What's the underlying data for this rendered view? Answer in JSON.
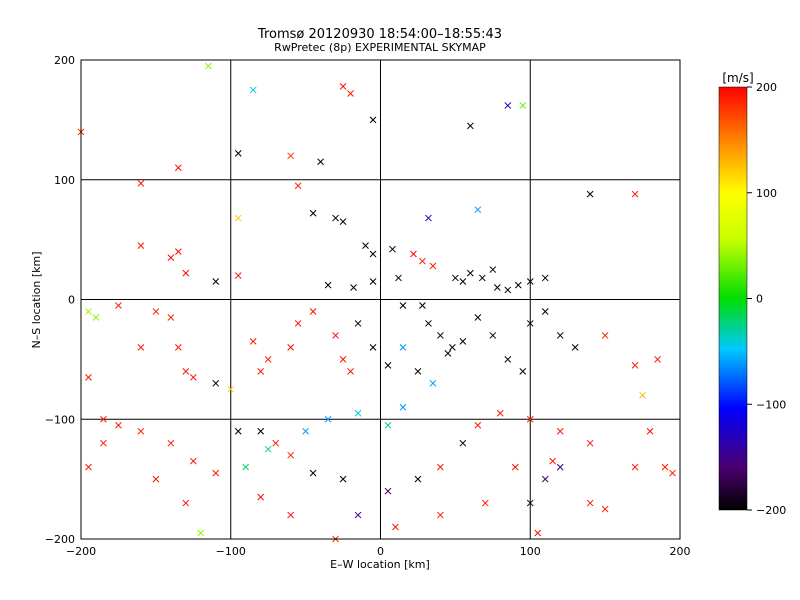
{
  "chart_data": {
    "type": "scatter",
    "title": "Tromsø 20120930 18:54:00–18:55:43",
    "subtitle": "RwPretec (8p) EXPERIMENTAL SKYMAP",
    "xlabel": "E–W location [km]",
    "ylabel": "N–S location [km]",
    "xlim": [
      -200,
      200
    ],
    "ylim": [
      -200,
      200
    ],
    "x_ticks": [
      "−200",
      "−100",
      "0",
      "100",
      "200"
    ],
    "y_ticks": [
      "−200",
      "−100",
      "0",
      "100",
      "200"
    ],
    "grid": true,
    "colorbar": {
      "label": "[m/s]",
      "range": [
        -200,
        200
      ],
      "ticks": [
        "200",
        "100",
        "0",
        "−100",
        "−200"
      ]
    },
    "markers": {
      "small": "dot",
      "large": "x"
    },
    "series": [
      {
        "marker": "x",
        "points": [
          [
            -115,
            195,
            40
          ],
          [
            -85,
            175,
            -40
          ],
          [
            -25,
            178,
            195
          ],
          [
            -20,
            172,
            190
          ],
          [
            -5,
            150,
            -200
          ],
          [
            60,
            145,
            -200
          ],
          [
            85,
            162,
            -120
          ],
          [
            95,
            162,
            30
          ],
          [
            -95,
            122,
            -200
          ],
          [
            -60,
            120,
            180
          ],
          [
            -40,
            115,
            -200
          ],
          [
            -135,
            110,
            195
          ],
          [
            -160,
            97,
            190
          ],
          [
            -55,
            95,
            185
          ],
          [
            -95,
            68,
            120
          ],
          [
            -45,
            72,
            -200
          ],
          [
            -30,
            68,
            -200
          ],
          [
            -25,
            65,
            -200
          ],
          [
            32,
            68,
            -130
          ],
          [
            65,
            75,
            -60
          ],
          [
            140,
            88,
            -200
          ],
          [
            170,
            88,
            190
          ],
          [
            -160,
            45,
            190
          ],
          [
            -140,
            35,
            195
          ],
          [
            -130,
            22,
            195
          ],
          [
            -110,
            15,
            -200
          ],
          [
            -95,
            20,
            195
          ],
          [
            -135,
            40,
            195
          ],
          [
            -10,
            45,
            -200
          ],
          [
            -5,
            38,
            -200
          ],
          [
            8,
            42,
            -200
          ],
          [
            22,
            38,
            195
          ],
          [
            28,
            32,
            190
          ],
          [
            35,
            28,
            190
          ],
          [
            50,
            18,
            -200
          ],
          [
            55,
            15,
            -200
          ],
          [
            60,
            22,
            -200
          ],
          [
            68,
            18,
            -200
          ],
          [
            75,
            25,
            -200
          ],
          [
            78,
            10,
            -200
          ],
          [
            85,
            8,
            -200
          ],
          [
            92,
            12,
            -200
          ],
          [
            100,
            15,
            -200
          ],
          [
            110,
            18,
            -200
          ],
          [
            -195,
            -10,
            45
          ],
          [
            -190,
            -15,
            40
          ],
          [
            -175,
            -5,
            190
          ],
          [
            -160,
            -40,
            190
          ],
          [
            -150,
            -10,
            185
          ],
          [
            -140,
            -15,
            185
          ],
          [
            -135,
            -40,
            190
          ],
          [
            -130,
            -60,
            190
          ],
          [
            -125,
            -65,
            190
          ],
          [
            -110,
            -70,
            -200
          ],
          [
            -100,
            -75,
            120
          ],
          [
            -85,
            -35,
            190
          ],
          [
            -80,
            -60,
            190
          ],
          [
            -75,
            -50,
            190
          ],
          [
            -60,
            -40,
            195
          ],
          [
            -55,
            -20,
            195
          ],
          [
            -45,
            -10,
            195
          ],
          [
            -30,
            -30,
            195
          ],
          [
            -25,
            -50,
            195
          ],
          [
            -20,
            -60,
            190
          ],
          [
            -15,
            -20,
            -200
          ],
          [
            -5,
            -40,
            -200
          ],
          [
            5,
            -55,
            -200
          ],
          [
            15,
            -40,
            -60
          ],
          [
            25,
            -60,
            -200
          ],
          [
            35,
            -70,
            -60
          ],
          [
            45,
            -45,
            -200
          ],
          [
            55,
            -35,
            -200
          ],
          [
            65,
            -15,
            -200
          ],
          [
            75,
            -30,
            -200
          ],
          [
            85,
            -50,
            -200
          ],
          [
            95,
            -60,
            -200
          ],
          [
            100,
            -20,
            -200
          ],
          [
            110,
            -10,
            -200
          ],
          [
            120,
            -30,
            -200
          ],
          [
            130,
            -40,
            -200
          ],
          [
            150,
            -30,
            190
          ],
          [
            170,
            -55,
            190
          ],
          [
            175,
            -80,
            130
          ],
          [
            185,
            -50,
            190
          ],
          [
            -195,
            -65,
            190
          ],
          [
            -185,
            -100,
            190
          ],
          [
            -175,
            -105,
            190
          ],
          [
            -160,
            -110,
            185
          ],
          [
            -140,
            -120,
            190
          ],
          [
            -125,
            -135,
            190
          ],
          [
            -110,
            -145,
            190
          ],
          [
            -95,
            -110,
            -200
          ],
          [
            -80,
            -110,
            -200
          ],
          [
            -70,
            -120,
            190
          ],
          [
            -60,
            -130,
            185
          ],
          [
            -45,
            -145,
            -200
          ],
          [
            -25,
            -150,
            -200
          ],
          [
            -15,
            -180,
            -150
          ],
          [
            5,
            -160,
            -160
          ],
          [
            25,
            -150,
            -200
          ],
          [
            40,
            -140,
            190
          ],
          [
            55,
            -120,
            -200
          ],
          [
            65,
            -105,
            190
          ],
          [
            80,
            -95,
            190
          ],
          [
            90,
            -140,
            195
          ],
          [
            100,
            -170,
            -200
          ],
          [
            105,
            -195,
            195
          ],
          [
            110,
            -150,
            -160
          ],
          [
            115,
            -135,
            190
          ],
          [
            120,
            -140,
            -150
          ],
          [
            140,
            -170,
            190
          ],
          [
            150,
            -175,
            190
          ],
          [
            170,
            -140,
            190
          ],
          [
            180,
            -110,
            195
          ],
          [
            190,
            -140,
            190
          ],
          [
            195,
            -145,
            185
          ],
          [
            -120,
            -195,
            40
          ],
          [
            -90,
            -140,
            -20
          ],
          [
            -75,
            -125,
            -20
          ],
          [
            -50,
            -110,
            -60
          ],
          [
            -35,
            -100,
            -60
          ],
          [
            -15,
            -95,
            -40
          ],
          [
            5,
            -105,
            -30
          ],
          [
            15,
            -90,
            -60
          ],
          [
            -35,
            12,
            -200
          ],
          [
            -18,
            10,
            -200
          ],
          [
            -5,
            15,
            -200
          ],
          [
            12,
            18,
            -200
          ],
          [
            15,
            -5,
            -200
          ],
          [
            28,
            -5,
            -200
          ],
          [
            32,
            -20,
            -200
          ],
          [
            40,
            -30,
            -200
          ],
          [
            48,
            -40,
            -200
          ],
          [
            -200,
            140,
            180
          ],
          [
            -195,
            -140,
            190
          ],
          [
            -185,
            -120,
            190
          ],
          [
            -150,
            -150,
            195
          ],
          [
            -130,
            -170,
            195
          ],
          [
            -80,
            -165,
            195
          ],
          [
            -60,
            -180,
            195
          ],
          [
            -30,
            -200,
            180
          ],
          [
            10,
            -190,
            190
          ],
          [
            40,
            -180,
            190
          ],
          [
            70,
            -170,
            190
          ],
          [
            100,
            -100,
            190
          ],
          [
            120,
            -110,
            190
          ],
          [
            140,
            -120,
            190
          ]
        ]
      }
    ]
  }
}
